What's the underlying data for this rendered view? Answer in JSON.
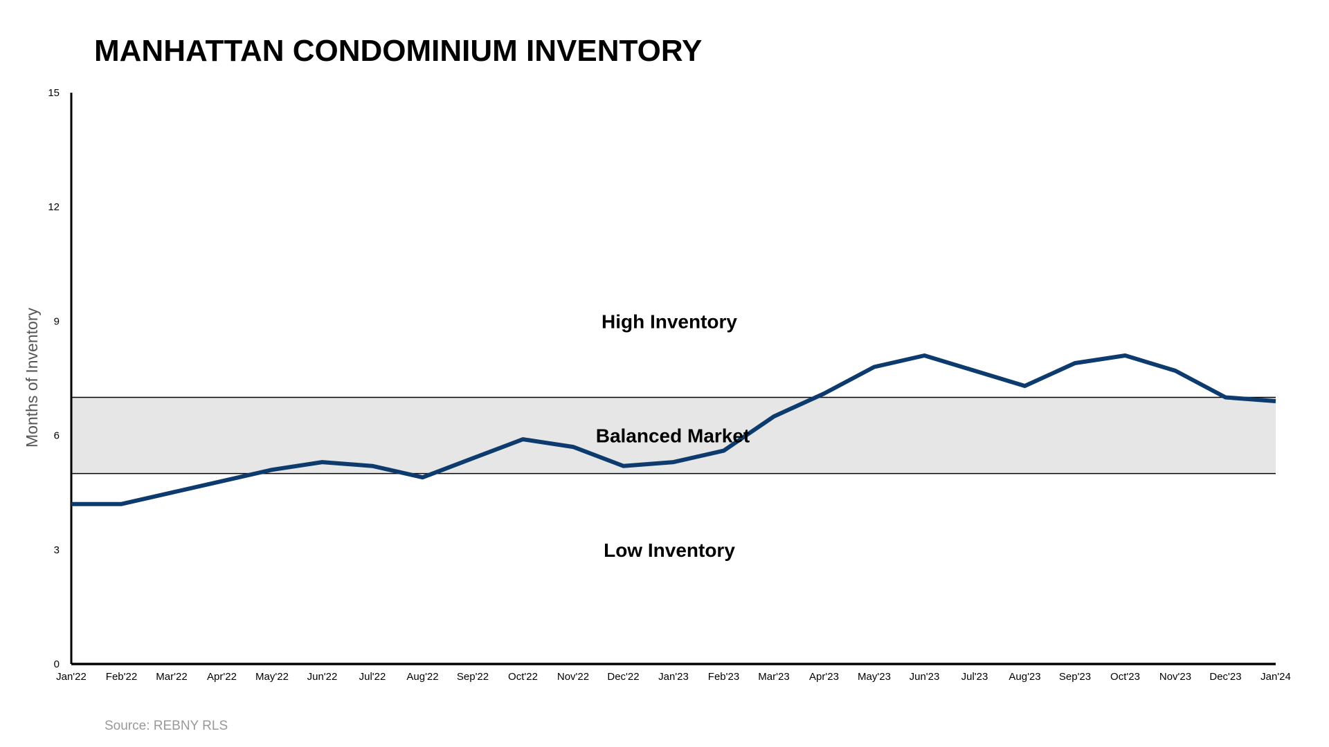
{
  "chart_data": {
    "type": "line",
    "title": "MANHATTAN CONDOMINIUM INVENTORY",
    "xlabel": "",
    "ylabel": "Months of Inventory",
    "ylim": [
      0,
      15
    ],
    "yticks": [
      0,
      3,
      6,
      9,
      12,
      15
    ],
    "grid": false,
    "categories": [
      "Jan'22",
      "Feb'22",
      "Mar'22",
      "Apr'22",
      "May'22",
      "Jun'22",
      "Jul'22",
      "Aug'22",
      "Sep'22",
      "Oct'22",
      "Nov'22",
      "Dec'22",
      "Jan'23",
      "Feb'23",
      "Mar'23",
      "Apr'23",
      "May'23",
      "Jun'23",
      "Jul'23",
      "Aug'23",
      "Sep'23",
      "Oct'23",
      "Nov'23",
      "Dec'23",
      "Jan'24"
    ],
    "series": [
      {
        "values": [
          4.2,
          4.2,
          4.5,
          4.8,
          5.1,
          5.3,
          5.2,
          4.9,
          5.4,
          5.9,
          5.7,
          5.2,
          5.3,
          5.6,
          6.5,
          7.1,
          7.8,
          8.1,
          7.7,
          7.3,
          7.9,
          8.1,
          7.7,
          7.0,
          6.9
        ],
        "color": "#0d3b6e"
      }
    ],
    "bands": [
      {
        "from": 5,
        "to": 7,
        "label": "Balanced Market",
        "color": "#e6e6e6"
      }
    ],
    "annotations": [
      {
        "label": "High Inventory",
        "y": 9
      },
      {
        "label": "Low Inventory",
        "y": 3
      }
    ],
    "source": "Source: REBNY RLS"
  }
}
